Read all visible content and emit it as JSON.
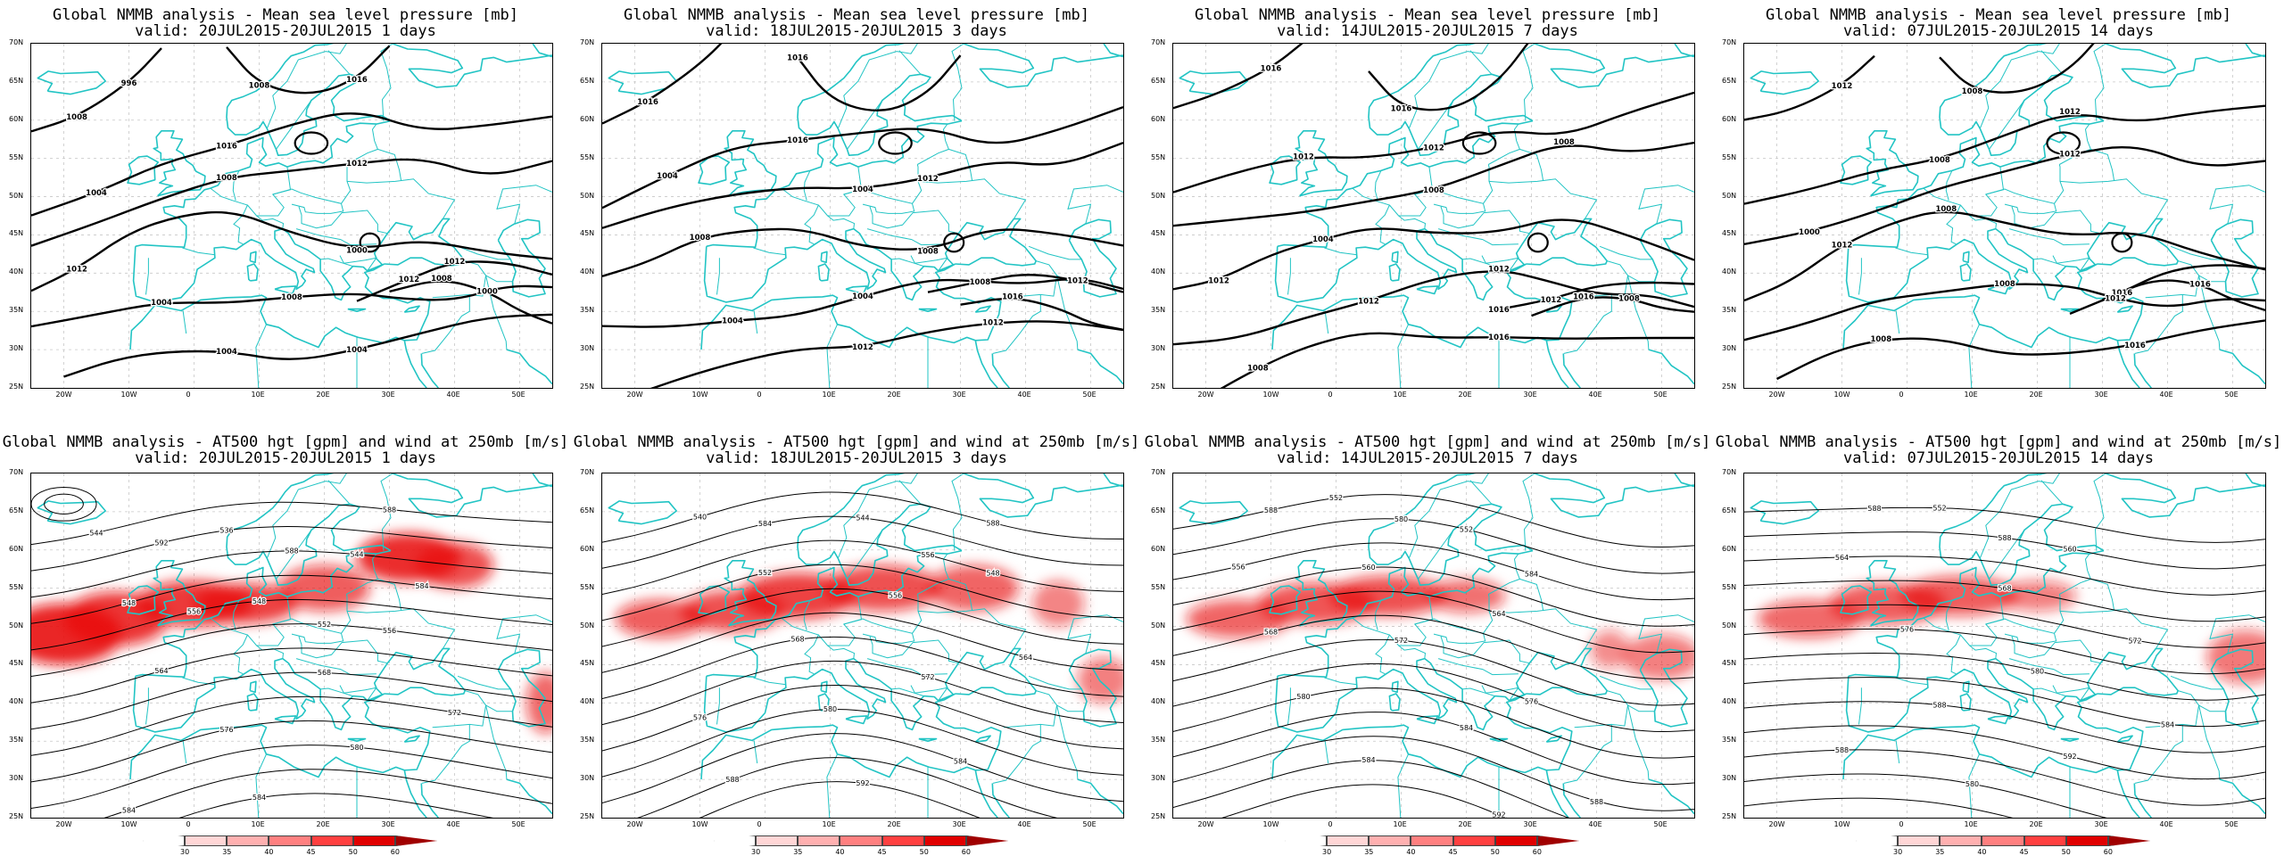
{
  "panels": [
    {
      "line1": "Global NMMB analysis - Mean sea level pressure [mb]",
      "line2": "valid: 20JUL2015-20JUL2015  1 days",
      "kind": "mslp",
      "labels": [
        "1004",
        "1008",
        "1000",
        "1004",
        "1004",
        "1012",
        "1008",
        "1008",
        "1016",
        "1016",
        "1012",
        "1012",
        "1008",
        "1004",
        "1012",
        "1000",
        "996",
        "1008"
      ]
    },
    {
      "line1": "Global NMMB analysis - Mean sea level pressure [mb]",
      "line2": "valid: 18JUL2015-20JUL2015  3 days",
      "kind": "mslp",
      "labels": [
        "1004",
        "1004",
        "1008",
        "1004",
        "1012",
        "1012",
        "1016",
        "1016",
        "1016",
        "1016",
        "1012",
        "1008",
        "1004",
        "1012",
        "1008"
      ]
    },
    {
      "line1": "Global NMMB analysis - Mean sea level pressure [mb]",
      "line2": "valid: 14JUL2015-20JUL2015  7 days",
      "kind": "mslp",
      "labels": [
        "1012",
        "1008",
        "1012",
        "1012",
        "1016",
        "1016",
        "1016",
        "1016",
        "1016",
        "1012",
        "1008",
        "1004",
        "1012",
        "1008",
        "1012",
        "1008"
      ]
    },
    {
      "line1": "Global NMMB analysis - Mean sea level pressure [mb]",
      "line2": "valid: 07JUL2015-20JUL2015  14 days",
      "kind": "mslp",
      "labels": [
        "1008",
        "1012",
        "1012",
        "1008",
        "1016",
        "1016",
        "1016",
        "1012",
        "1008",
        "1012",
        "1000",
        "1008",
        "1012",
        "1008"
      ]
    },
    {
      "line1": "Global NMMB analysis - AT500 hgt [gpm] and wind at 250mb [m/s]",
      "line2": "valid: 20JUL2015-20JUL2015  1 days",
      "kind": "z500",
      "labels": [
        "544",
        "536",
        "544",
        "548",
        "548",
        "556",
        "564",
        "568",
        "572",
        "576",
        "580",
        "584",
        "584",
        "588",
        "592",
        "588",
        "584",
        "556",
        "552"
      ]
    },
    {
      "line1": "Global NMMB analysis - AT500 hgt [gpm] and wind at 250mb [m/s]",
      "line2": "valid: 18JUL2015-20JUL2015  3 days",
      "kind": "z500",
      "labels": [
        "540",
        "544",
        "548",
        "552",
        "556",
        "564",
        "568",
        "572",
        "576",
        "580",
        "584",
        "588",
        "592",
        "588",
        "584",
        "556"
      ]
    },
    {
      "line1": "Global NMMB analysis - AT500 hgt [gpm] and wind at 250mb [m/s]",
      "line2": "valid: 14JUL2015-20JUL2015  7 days",
      "kind": "z500",
      "labels": [
        "552",
        "552",
        "556",
        "560",
        "564",
        "568",
        "572",
        "576",
        "580",
        "584",
        "588",
        "584",
        "592",
        "588",
        "580",
        "584"
      ]
    },
    {
      "line1": "Global NMMB analysis - AT500 hgt [gpm] and wind at 250mb [m/s]",
      "line2": "valid: 07JUL2015-20JUL2015  14 days",
      "kind": "z500",
      "labels": [
        "552",
        "560",
        "564",
        "568",
        "572",
        "576",
        "580",
        "584",
        "588",
        "592",
        "588",
        "580",
        "584",
        "588",
        "588"
      ]
    }
  ],
  "lat_labels": [
    "70N",
    "65N",
    "60N",
    "55N",
    "50N",
    "45N",
    "40N",
    "35N",
    "30N",
    "25N"
  ],
  "lon_labels": [
    "20W",
    "10W",
    "0",
    "10E",
    "20E",
    "30E",
    "40E",
    "50E"
  ],
  "colorbar": {
    "labels": [
      "30",
      "35",
      "40",
      "45",
      "50",
      "60"
    ],
    "colors": [
      "#ffffff",
      "#ffd6d6",
      "#ffb0b0",
      "#ff8080",
      "#ff4040",
      "#e00000",
      "#a00000"
    ]
  },
  "colors": {
    "coast": "#22c4c4",
    "contour": "#000000",
    "jet": "#e81010"
  }
}
